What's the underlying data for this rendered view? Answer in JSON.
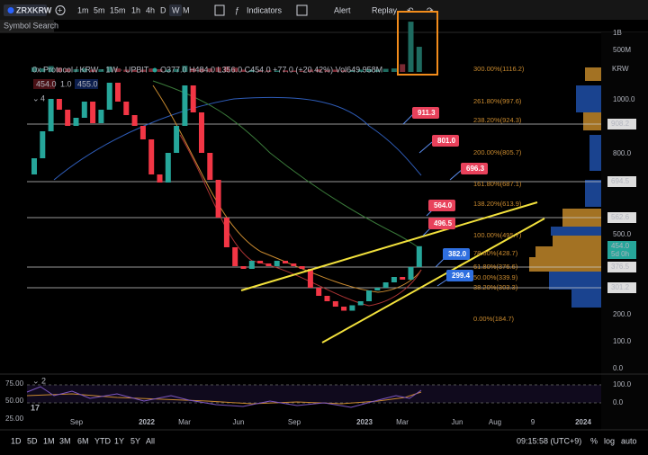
{
  "toolbar": {
    "symbol": "ZRXKRW",
    "intervals": [
      "1m",
      "5m",
      "15m",
      "1h",
      "4h",
      "D",
      "W",
      "M"
    ],
    "indicators": "Indicators",
    "alert": "Alert",
    "replay": "Replay"
  },
  "symbol_search": "Symbol Search",
  "legend": {
    "title": "0x Protocol / KRW · 1W · UPBIT",
    "ohlc": "O377.0 H484.0 L356.0 C454.0 +77.0 (+20.42%) Vol649.958M",
    "badges": [
      "454.0",
      "1.0",
      "455.0"
    ],
    "count": "4"
  },
  "price_axis": {
    "currency": "KRW",
    "ticks": [
      "1000.0",
      "800.0",
      "500.0",
      "200.0",
      "100.0",
      "0.0"
    ],
    "countdown": "5d 0h"
  },
  "price_tags": [
    "908.2",
    "694.5",
    "562.6",
    "454.0",
    "376.5",
    "301.2"
  ],
  "fib_levels": [
    "300.00%(1116.2)",
    "261.80%(997.6)",
    "238.20%(924.3)",
    "200.00%(805.7)",
    "161.80%(687.1)",
    "138.20%(613.9)",
    "100.00%(495.7)",
    "78.60%(428.7)",
    "61.80%(376.6)",
    "50.00%(339.9)",
    "38.20%(303.3)",
    "0.00%(184.7)"
  ],
  "callouts": [
    "911.3",
    "801.0",
    "696.3",
    "564.0",
    "496.5",
    "382.0",
    "299.4"
  ],
  "candles": {
    "open": [
      720,
      780,
      880,
      1000,
      960,
      900,
      930,
      990,
      910,
      960,
      1060,
      990,
      940,
      900,
      850,
      720,
      690,
      800,
      900,
      1050,
      950,
      800,
      700,
      560,
      450,
      380,
      370,
      400,
      390,
      380,
      400,
      390,
      380,
      370,
      300,
      270,
      250,
      230,
      215,
      235,
      250,
      290,
      300,
      320,
      340,
      330,
      377
    ],
    "close": [
      780,
      880,
      1000,
      960,
      900,
      930,
      990,
      910,
      960,
      1060,
      990,
      940,
      900,
      850,
      720,
      690,
      800,
      900,
      1050,
      950,
      800,
      700,
      560,
      450,
      380,
      370,
      400,
      390,
      380,
      400,
      390,
      380,
      370,
      300,
      270,
      250,
      230,
      215,
      235,
      250,
      290,
      300,
      320,
      340,
      330,
      377,
      454
    ]
  },
  "volume": {
    "values": [
      120,
      90,
      150,
      110,
      80,
      70,
      90,
      60,
      70,
      140,
      90,
      60,
      50,
      60,
      90,
      70,
      60,
      80,
      160,
      90,
      80,
      90,
      120,
      140,
      110,
      60,
      50,
      40,
      40,
      35,
      40,
      35,
      30,
      60,
      70,
      50,
      60,
      40,
      40,
      60,
      70,
      60,
      80,
      90,
      200,
      1300,
      650
    ],
    "ticks": [
      "1B",
      "500M"
    ]
  },
  "rsi": {
    "count": "2",
    "ticks": [
      "75.00",
      "50.00",
      "25.00"
    ],
    "right_ticks": [
      "100.0",
      "0.0"
    ]
  },
  "time_axis": [
    "Sep",
    "2022",
    "Mar",
    "Jun",
    "Sep",
    "2023",
    "Mar",
    "Jun",
    "Aug",
    "9",
    "2024"
  ],
  "bottom_bar": {
    "ranges": [
      "1D",
      "5D",
      "1M",
      "3M",
      "6M",
      "YTD",
      "1Y",
      "5Y",
      "All"
    ],
    "clock": "09:15:58 (UTC+9)",
    "options": [
      "%",
      "log",
      "auto"
    ]
  }
}
